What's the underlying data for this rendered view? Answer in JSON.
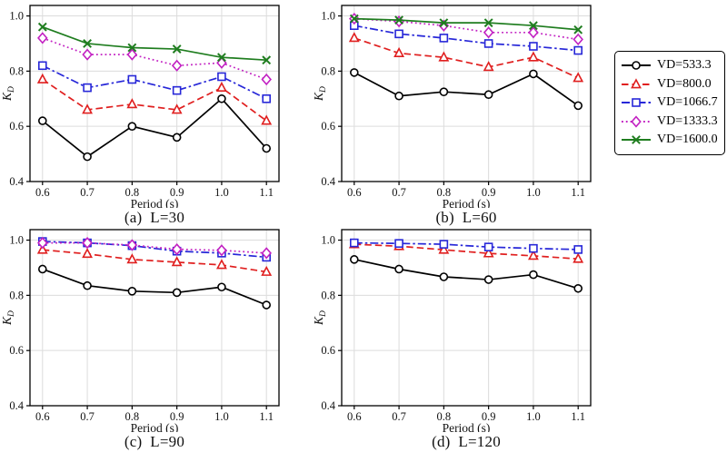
{
  "figure": {
    "xlabel": "Period (s)",
    "ylabel_base": "K",
    "ylabel_sub": "D",
    "x_tick_labels": [
      "0.6",
      "0.7",
      "0.8",
      "0.9",
      "1.0",
      "1.1"
    ],
    "y_tick_labels": [
      "0.4",
      "0.6",
      "0.8",
      "1.0"
    ],
    "grid_color": "#dcdcdc",
    "axis_color": "#000000",
    "background": "#ffffff"
  },
  "legend": {
    "items": [
      {
        "label": "VD=533.3",
        "color": "#000000",
        "linestyle": "solid",
        "marker": "circle"
      },
      {
        "label": "VD=800.0",
        "color": "#e01f1f",
        "linestyle": "dashed",
        "marker": "triangle"
      },
      {
        "label": "VD=1066.7",
        "color": "#2727d8",
        "linestyle": "dashdot",
        "marker": "square"
      },
      {
        "label": "VD=1333.3",
        "color": "#c220c2",
        "linestyle": "dotted",
        "marker": "diamond"
      },
      {
        "label": "VD=1600.0",
        "color": "#1f7d1f",
        "linestyle": "solid",
        "marker": "x"
      }
    ]
  },
  "chart_data": [
    {
      "type": "line",
      "title": "(a)  L=30",
      "x": [
        0.6,
        0.7,
        0.8,
        0.9,
        1.0,
        1.1
      ],
      "series": [
        {
          "name": "VD=533.3",
          "values": [
            0.62,
            0.49,
            0.6,
            0.56,
            0.7,
            0.52
          ]
        },
        {
          "name": "VD=800.0",
          "values": [
            0.77,
            0.66,
            0.68,
            0.66,
            0.74,
            0.62
          ]
        },
        {
          "name": "VD=1066.7",
          "values": [
            0.82,
            0.74,
            0.77,
            0.73,
            0.78,
            0.7
          ]
        },
        {
          "name": "VD=1333.3",
          "values": [
            0.92,
            0.86,
            0.86,
            0.82,
            0.83,
            0.77
          ]
        },
        {
          "name": "VD=1600.0",
          "values": [
            0.96,
            0.9,
            0.885,
            0.88,
            0.85,
            0.84
          ]
        }
      ],
      "xlabel": "Period (s)",
      "ylabel": "K_D",
      "xlim": [
        0.572,
        1.128
      ],
      "ylim": [
        0.4,
        1.038
      ],
      "x_ticks": [
        0.6,
        0.7,
        0.8,
        0.9,
        1.0,
        1.1
      ],
      "y_ticks": [
        0.4,
        0.6,
        0.8,
        1.0
      ],
      "grid": true,
      "legend_position": "outside-right"
    },
    {
      "type": "line",
      "title": "(b)  L=60",
      "x": [
        0.6,
        0.7,
        0.8,
        0.9,
        1.0,
        1.1
      ],
      "series": [
        {
          "name": "VD=533.3",
          "values": [
            0.795,
            0.71,
            0.725,
            0.715,
            0.79,
            0.675
          ]
        },
        {
          "name": "VD=800.0",
          "values": [
            0.92,
            0.865,
            0.85,
            0.815,
            0.85,
            0.775
          ]
        },
        {
          "name": "VD=1066.7",
          "values": [
            0.965,
            0.935,
            0.92,
            0.9,
            0.89,
            0.875
          ]
        },
        {
          "name": "VD=1333.3",
          "values": [
            0.99,
            0.98,
            0.965,
            0.94,
            0.94,
            0.915
          ]
        },
        {
          "name": "VD=1600.0",
          "values": [
            0.99,
            0.985,
            0.975,
            0.975,
            0.965,
            0.95
          ]
        }
      ],
      "xlabel": "Period (s)",
      "ylabel": "K_D",
      "xlim": [
        0.572,
        1.128
      ],
      "ylim": [
        0.4,
        1.038
      ],
      "x_ticks": [
        0.6,
        0.7,
        0.8,
        0.9,
        1.0,
        1.1
      ],
      "y_ticks": [
        0.4,
        0.6,
        0.8,
        1.0
      ],
      "grid": true
    },
    {
      "type": "line",
      "title": "(c)  L=90",
      "x": [
        0.6,
        0.7,
        0.8,
        0.9,
        1.0,
        1.1
      ],
      "series": [
        {
          "name": "VD=533.3",
          "values": [
            0.895,
            0.835,
            0.815,
            0.81,
            0.83,
            0.765
          ]
        },
        {
          "name": "VD=800.0",
          "values": [
            0.965,
            0.95,
            0.93,
            0.92,
            0.91,
            0.885
          ]
        },
        {
          "name": "VD=1066.7",
          "values": [
            0.995,
            0.99,
            0.98,
            0.96,
            0.953,
            0.938
          ]
        },
        {
          "name": "VD=1333.3",
          "values": [
            0.99,
            0.99,
            0.982,
            0.967,
            0.963,
            0.953
          ]
        }
      ],
      "xlabel": "Period (s)",
      "ylabel": "K_D",
      "xlim": [
        0.572,
        1.128
      ],
      "ylim": [
        0.4,
        1.038
      ],
      "x_ticks": [
        0.6,
        0.7,
        0.8,
        0.9,
        1.0,
        1.1
      ],
      "y_ticks": [
        0.4,
        0.6,
        0.8,
        1.0
      ],
      "grid": true
    },
    {
      "type": "line",
      "title": "(d)  L=120",
      "x": [
        0.6,
        0.7,
        0.8,
        0.9,
        1.0,
        1.1
      ],
      "series": [
        {
          "name": "VD=533.3",
          "values": [
            0.93,
            0.895,
            0.867,
            0.857,
            0.875,
            0.825
          ]
        },
        {
          "name": "VD=800.0",
          "values": [
            0.985,
            0.978,
            0.965,
            0.952,
            0.943,
            0.932
          ]
        },
        {
          "name": "VD=1066.7",
          "values": [
            0.99,
            0.988,
            0.985,
            0.975,
            0.97,
            0.966
          ]
        }
      ],
      "xlabel": "Period (s)",
      "ylabel": "K_D",
      "xlim": [
        0.572,
        1.128
      ],
      "ylim": [
        0.4,
        1.038
      ],
      "x_ticks": [
        0.6,
        0.7,
        0.8,
        0.9,
        1.0,
        1.1
      ],
      "y_ticks": [
        0.4,
        0.6,
        0.8,
        1.0
      ],
      "grid": true
    }
  ]
}
